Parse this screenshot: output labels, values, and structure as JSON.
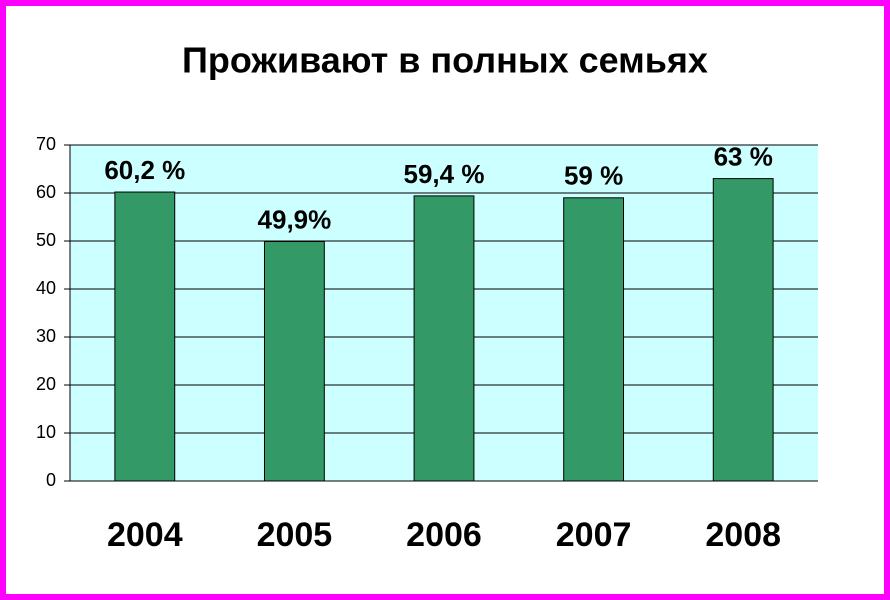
{
  "chart_data": {
    "type": "bar",
    "title": "Проживают в полных семьях",
    "categories": [
      "2004",
      "2005",
      "2006",
      "2007",
      "2008"
    ],
    "values": [
      60.2,
      49.9,
      59.4,
      59,
      63
    ],
    "value_labels": [
      "60,2 %",
      "49,9%",
      "59,4 %",
      "59 %",
      "63 %"
    ],
    "color": "#339966",
    "ylim": [
      0,
      70
    ],
    "yticks": [
      0,
      10,
      20,
      30,
      40,
      50,
      60,
      70
    ],
    "grid": true
  }
}
